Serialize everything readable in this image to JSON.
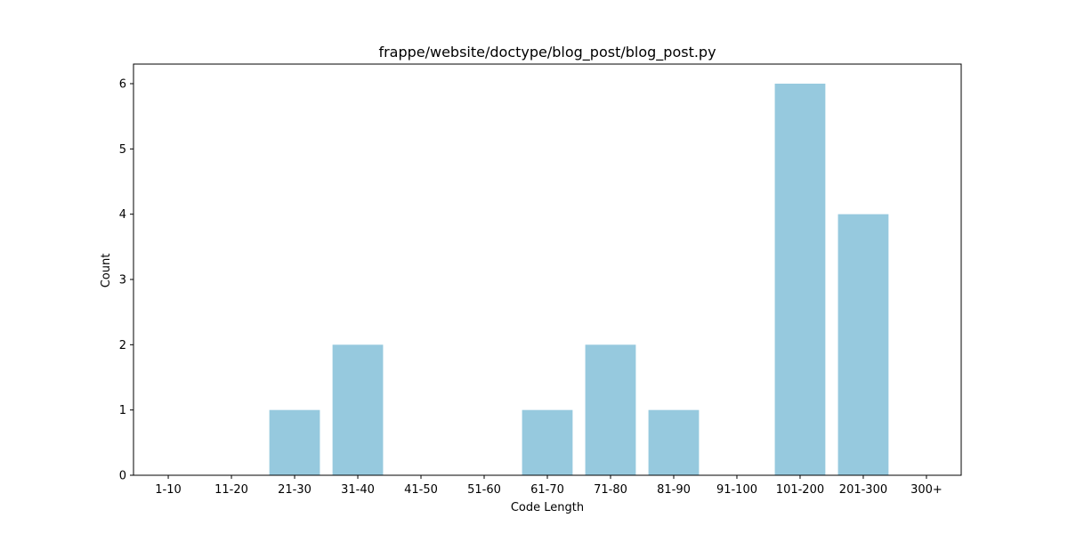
{
  "chart_data": {
    "type": "bar",
    "title": "frappe/website/doctype/blog_post/blog_post.py",
    "xlabel": "Code Length",
    "ylabel": "Count",
    "categories": [
      "1-10",
      "11-20",
      "21-30",
      "31-40",
      "41-50",
      "51-60",
      "61-70",
      "71-80",
      "81-90",
      "91-100",
      "101-200",
      "201-300",
      "300+"
    ],
    "values": [
      0,
      0,
      1,
      2,
      0,
      0,
      1,
      2,
      1,
      0,
      6,
      4,
      0
    ],
    "ylim": [
      0,
      6.3
    ],
    "yticks": [
      0,
      1,
      2,
      3,
      4,
      5,
      6
    ],
    "bar_color": "#96c9de",
    "grid": false,
    "legend": "none"
  }
}
